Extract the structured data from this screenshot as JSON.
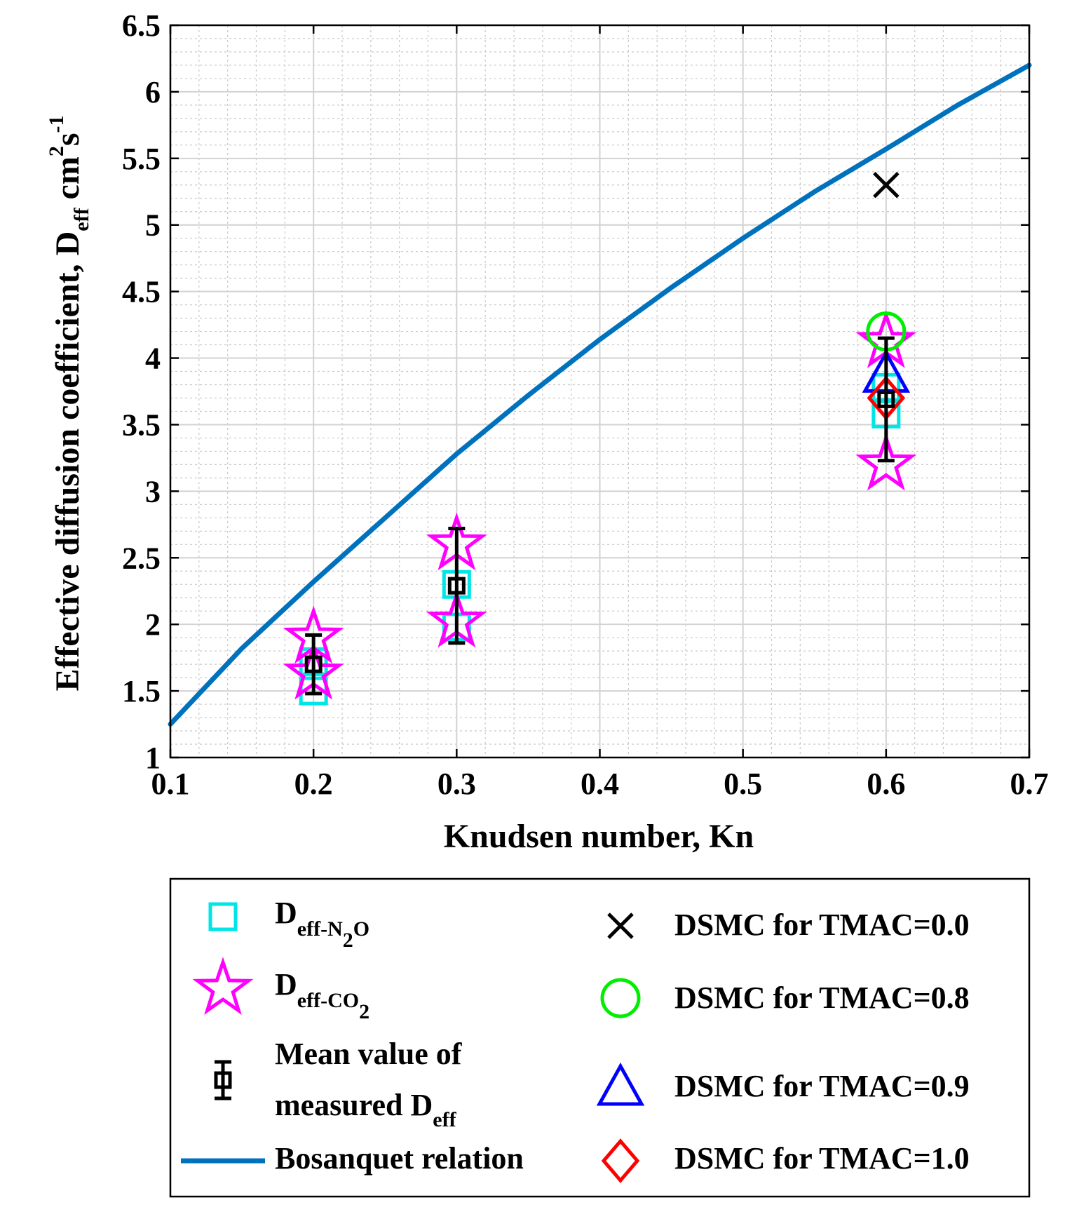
{
  "chart_data": {
    "type": "scatter",
    "xlabel": "Knudsen number, Kn",
    "ylabel_parts": [
      "Effective diffusion coefficient, D",
      "eff",
      " cm",
      "2",
      "s",
      "-1"
    ],
    "xlim": [
      0.1,
      0.7
    ],
    "ylim": [
      1,
      6.5
    ],
    "xticks": [
      "0.1",
      "0.2",
      "0.3",
      "0.4",
      "0.5",
      "0.6",
      "0.7"
    ],
    "yticks": [
      "1",
      "1.5",
      "2",
      "2.5",
      "3",
      "3.5",
      "4",
      "4.5",
      "5",
      "5.5",
      "6",
      "6.5"
    ],
    "grid": "major and minor",
    "series": [
      {
        "name": "Deff-N2O",
        "marker": "square",
        "color": "#00e5e5",
        "points": [
          [
            0.2,
            1.5
          ],
          [
            0.2,
            1.72
          ],
          [
            0.3,
            1.98
          ],
          [
            0.3,
            2.3
          ],
          [
            0.6,
            3.58
          ],
          [
            0.6,
            3.78
          ]
        ]
      },
      {
        "name": "Deff-CO2",
        "marker": "star",
        "color": "#ff00ff",
        "points": [
          [
            0.2,
            1.63
          ],
          [
            0.2,
            1.9
          ],
          [
            0.3,
            2.02
          ],
          [
            0.3,
            2.6
          ],
          [
            0.6,
            3.2
          ],
          [
            0.6,
            4.12
          ]
        ]
      },
      {
        "name": "Mean value of measured Deff",
        "marker": "errorbar",
        "color": "#000000",
        "points": [
          [
            0.2,
            1.7,
            0.22
          ],
          [
            0.3,
            2.29,
            0.43
          ],
          [
            0.6,
            3.69,
            0.46
          ]
        ]
      },
      {
        "name": "DSMC for TMAC=0.0",
        "marker": "x",
        "color": "#000000",
        "points": [
          [
            0.6,
            5.3
          ]
        ]
      },
      {
        "name": "DSMC for TMAC=0.8",
        "marker": "circle",
        "color": "#00ee00",
        "points": [
          [
            0.6,
            4.2
          ]
        ]
      },
      {
        "name": "DSMC for TMAC=0.9",
        "marker": "triangle",
        "color": "#0000ff",
        "points": [
          [
            0.6,
            3.88
          ]
        ]
      },
      {
        "name": "DSMC for TMAC=1.0",
        "marker": "diamond",
        "color": "#ff0000",
        "points": [
          [
            0.6,
            3.7
          ]
        ]
      },
      {
        "name": "Bosanquet relation",
        "type": "line",
        "color": "#0072bd",
        "x": [
          0.1,
          0.15,
          0.2,
          0.25,
          0.3,
          0.35,
          0.4,
          0.45,
          0.5,
          0.55,
          0.6,
          0.65,
          0.7
        ],
        "y": [
          1.25,
          1.82,
          2.32,
          2.8,
          3.28,
          3.72,
          4.14,
          4.53,
          4.9,
          5.25,
          5.57,
          5.9,
          6.2
        ]
      }
    ],
    "legend": {
      "placement": "below",
      "items": [
        {
          "marker": "square",
          "color": "#00e5e5",
          "label_parts": [
            "D",
            "eff-N",
            "2",
            "O"
          ]
        },
        {
          "marker": "star",
          "color": "#ff00ff",
          "label_parts": [
            "D",
            "eff-CO",
            "2"
          ]
        },
        {
          "marker": "errorbar",
          "color": "#000000",
          "label_lines": [
            "Mean value of",
            "measured D"
          ],
          "label_sub": "eff"
        },
        {
          "marker": "line",
          "color": "#0072bd",
          "label": "Bosanquet relation"
        },
        {
          "marker": "x",
          "color": "#000000",
          "label": "DSMC for TMAC=0.0"
        },
        {
          "marker": "circle",
          "color": "#00ee00",
          "label": "DSMC for TMAC=0.8"
        },
        {
          "marker": "triangle",
          "color": "#0000ff",
          "label": "DSMC for TMAC=0.9"
        },
        {
          "marker": "diamond",
          "color": "#ff0000",
          "label": "DSMC for TMAC=1.0"
        }
      ]
    }
  }
}
